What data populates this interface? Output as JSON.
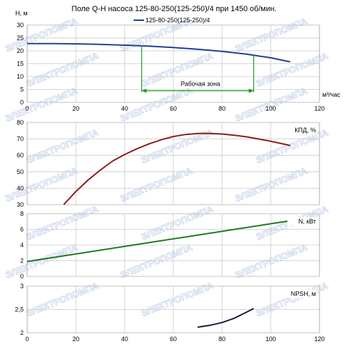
{
  "chart_data": {
    "title": "Поле Q-H насоса 125-80-250(125-250)/4 при 1450 об/мин.",
    "x_axis": {
      "label": "м³/час",
      "min": 0,
      "max": 120,
      "ticks": [
        "0",
        "20",
        "40",
        "60",
        "80",
        "100",
        "120"
      ]
    },
    "watermark": "ЭЛЕКТРОПОМПА",
    "panels": [
      {
        "key": "qh",
        "type": "line",
        "ylabel": "H, м",
        "ylim": [
          0,
          30
        ],
        "yticks": [
          "0",
          "5",
          "10",
          "15",
          "20",
          "25",
          "30"
        ],
        "legend": "125-80-250(125-250)/4",
        "series_color": "#1f3f8f",
        "x": [
          0,
          10,
          20,
          30,
          40,
          50,
          60,
          70,
          80,
          90,
          100,
          108
        ],
        "y": [
          22.8,
          22.8,
          22.7,
          22.5,
          22.2,
          21.8,
          21.3,
          20.6,
          19.8,
          18.7,
          17.3,
          15.7
        ],
        "work_zone": {
          "label": "Рабочая зона",
          "from": 47,
          "to": 93,
          "color": "#1a9a1a"
        }
      },
      {
        "key": "eff",
        "type": "line",
        "ylabel": "КПД, %",
        "ylim": [
          30,
          80
        ],
        "yticks": [
          "30",
          "40",
          "50",
          "60",
          "70",
          "80"
        ],
        "series_color": "#8b1a1a",
        "x": [
          15,
          20,
          25,
          30,
          35,
          40,
          45,
          50,
          55,
          60,
          65,
          70,
          75,
          80,
          85,
          90,
          95,
          100,
          108
        ],
        "y": [
          30,
          38,
          45,
          51,
          56.5,
          60.5,
          64,
          67,
          69.5,
          71.5,
          72.7,
          73.3,
          73.4,
          73,
          72.3,
          71.3,
          70,
          68.6,
          66
        ]
      },
      {
        "key": "power",
        "type": "line",
        "ylabel": "N, кВт",
        "ylim": [
          0,
          8
        ],
        "yticks": [
          "0",
          "2",
          "4",
          "6",
          "8"
        ],
        "series_color": "#1a7a1a",
        "x": [
          0,
          108
        ],
        "y": [
          1.9,
          7.1
        ]
      },
      {
        "key": "npsh",
        "type": "line",
        "ylabel": "NPSH, м",
        "ylim": [
          2,
          3
        ],
        "yticks": [
          "2",
          "2,5",
          "3"
        ],
        "series_color": "#1a1a3a",
        "x": [
          70,
          75,
          80,
          85,
          90,
          93
        ],
        "y": [
          2.12,
          2.16,
          2.22,
          2.31,
          2.44,
          2.52
        ]
      }
    ]
  }
}
